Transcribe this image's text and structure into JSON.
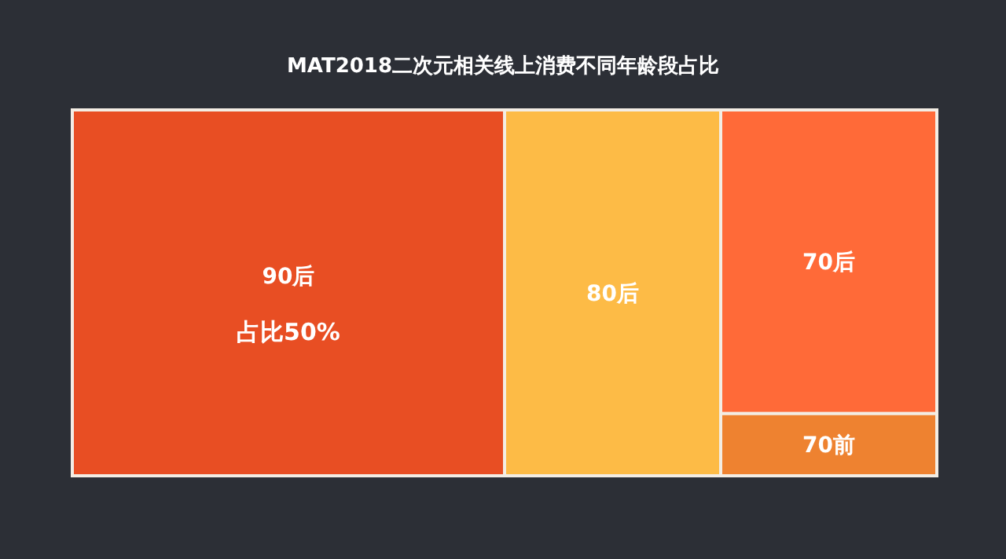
{
  "chart_data": {
    "type": "other",
    "title": "MAT2018二次元相关线上消费不同年龄段占比",
    "categories": [
      "90后",
      "80后",
      "70后",
      "70前"
    ],
    "values": [
      50,
      null,
      null,
      null
    ],
    "value_labels": [
      "占比50%",
      null,
      null,
      null
    ],
    "colors": [
      "#e84e23",
      "#fdbb46",
      "#ff6a38",
      "#ee8230"
    ]
  }
}
